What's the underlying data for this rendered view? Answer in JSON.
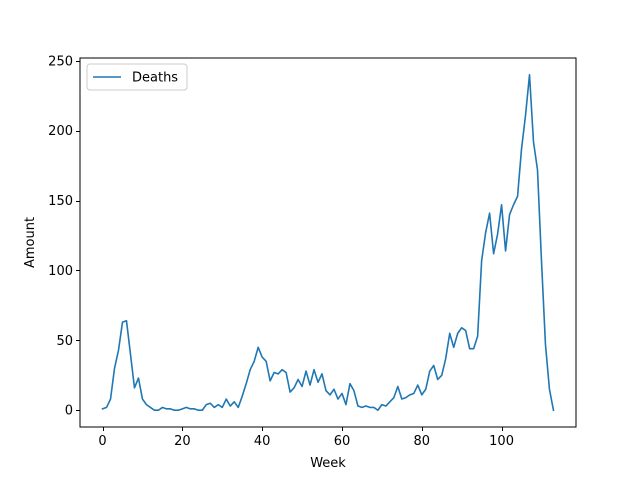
{
  "chart_data": {
    "type": "line",
    "title": "",
    "xlabel": "Week",
    "ylabel": "Amount",
    "xlim": [
      -5.65,
      118.65
    ],
    "ylim": [
      -12,
      252
    ],
    "xticks": [
      0,
      20,
      40,
      60,
      80,
      100
    ],
    "yticks": [
      0,
      50,
      100,
      150,
      200,
      250
    ],
    "grid": false,
    "legend_position": "upper-left",
    "series": [
      {
        "name": "Deaths",
        "color": "#1f77b4",
        "x": [
          0,
          1,
          2,
          3,
          4,
          5,
          6,
          7,
          8,
          9,
          10,
          11,
          12,
          13,
          14,
          15,
          16,
          17,
          18,
          19,
          20,
          21,
          22,
          23,
          24,
          25,
          26,
          27,
          28,
          29,
          30,
          31,
          32,
          33,
          34,
          35,
          36,
          37,
          38,
          39,
          40,
          41,
          42,
          43,
          44,
          45,
          46,
          47,
          48,
          49,
          50,
          51,
          52,
          53,
          54,
          55,
          56,
          57,
          58,
          59,
          60,
          61,
          62,
          63,
          64,
          65,
          66,
          67,
          68,
          69,
          70,
          71,
          72,
          73,
          74,
          75,
          76,
          77,
          78,
          79,
          80,
          81,
          82,
          83,
          84,
          85,
          86,
          87,
          88,
          89,
          90,
          91,
          92,
          93,
          94,
          95,
          96,
          97,
          98,
          99,
          100,
          101,
          102,
          103,
          104,
          105,
          106,
          107,
          108,
          109,
          110,
          111,
          112,
          113
        ],
        "values": [
          1,
          2,
          8,
          30,
          43,
          63,
          64,
          40,
          16,
          23,
          8,
          4,
          2,
          0,
          0,
          2,
          1,
          1,
          0,
          0,
          1,
          2,
          1,
          1,
          0,
          0,
          4,
          5,
          2,
          4,
          2,
          8,
          3,
          6,
          2,
          10,
          19,
          29,
          35,
          45,
          38,
          35,
          21,
          27,
          26,
          29,
          27,
          13,
          16,
          22,
          17,
          28,
          18,
          29,
          20,
          26,
          14,
          11,
          15,
          8,
          12,
          4,
          19,
          14,
          3,
          2,
          3,
          2,
          2,
          0,
          4,
          3,
          6,
          9,
          17,
          8,
          9,
          11,
          12,
          18,
          11,
          15,
          28,
          32,
          22,
          25,
          37,
          55,
          45,
          55,
          59,
          57,
          44,
          44,
          53,
          107,
          127,
          141,
          112,
          126,
          147,
          114,
          140,
          147,
          153,
          187,
          211,
          240,
          192,
          172,
          107,
          47,
          15,
          0
        ]
      }
    ]
  }
}
